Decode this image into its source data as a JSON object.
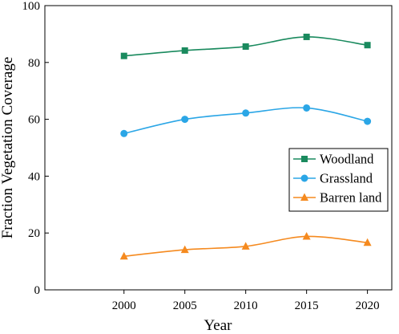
{
  "chart_data": {
    "type": "line",
    "x": [
      2000,
      2005,
      2010,
      2015,
      2020
    ],
    "xticks": [
      "2000",
      "2005",
      "2010",
      "2015",
      "2020"
    ],
    "xlim": [
      1993.5,
      2022
    ],
    "ylim": [
      0,
      100
    ],
    "yticks": [
      "0",
      "20",
      "40",
      "60",
      "80",
      "100"
    ],
    "xlabel": "Year",
    "ylabel": "Fraction Vegetation Coverage",
    "grid": false,
    "legend": "center-right",
    "series": [
      {
        "name": "Woodland",
        "values": [
          82.3,
          84.2,
          85.6,
          89.0,
          86.1
        ],
        "color": "#1a8a5e",
        "marker": "square"
      },
      {
        "name": "Grassland",
        "values": [
          55.0,
          60.0,
          62.2,
          64.0,
          59.3
        ],
        "color": "#2ba6e6",
        "marker": "circle"
      },
      {
        "name": "Barren land",
        "values": [
          11.8,
          14.1,
          15.3,
          18.8,
          16.6
        ],
        "color": "#f58a1f",
        "marker": "triangle"
      }
    ]
  }
}
